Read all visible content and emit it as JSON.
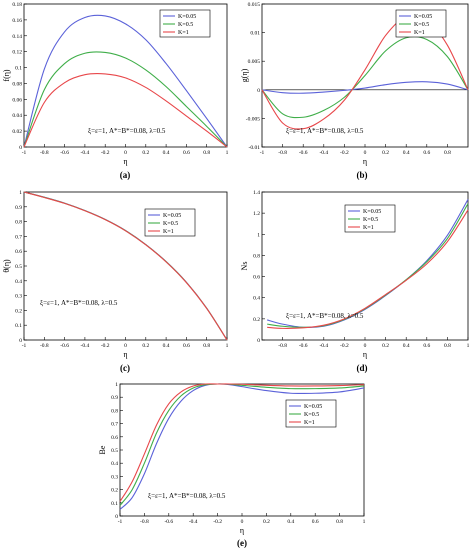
{
  "colors": {
    "blue": "#5b62d9",
    "green": "#3fae49",
    "red": "#e8474a"
  },
  "chart_data": [
    {
      "panel": "(a)",
      "type": "line",
      "xlabel": "η",
      "ylabel": "f(η)",
      "xlim": [
        -1,
        1
      ],
      "ylim": [
        0,
        0.18
      ],
      "xticks": [
        "-1",
        "-0.8",
        "-0.6",
        "-0.4",
        "-0.2",
        "0",
        "0.2",
        "0.4",
        "0.6",
        "0.8",
        "1"
      ],
      "yticks": [
        "0",
        "0.02",
        "0.04",
        "0.06",
        "0.08",
        "0.1",
        "0.12",
        "0.14",
        "0.16",
        "0.18"
      ],
      "ytick_values": [
        0,
        0.02,
        0.04,
        0.06,
        0.08,
        0.1,
        0.12,
        0.14,
        0.16,
        0.18
      ],
      "annotation": "ξ=ε=1, A*=B*=0.08, λ=0.5",
      "legend": "top-right",
      "x": [
        -1,
        -0.8,
        -0.6,
        -0.4,
        -0.2,
        0,
        0.2,
        0.4,
        0.6,
        0.8,
        1
      ],
      "series": [
        {
          "name": "K=0.05",
          "color": "blue",
          "values": [
            0,
            0.098,
            0.145,
            0.163,
            0.165,
            0.155,
            0.135,
            0.105,
            0.071,
            0.036,
            0
          ]
        },
        {
          "name": "K=0.5",
          "color": "green",
          "values": [
            0,
            0.072,
            0.105,
            0.118,
            0.119,
            0.112,
            0.097,
            0.076,
            0.051,
            0.026,
            0
          ]
        },
        {
          "name": "K=1",
          "color": "red",
          "values": [
            0,
            0.056,
            0.081,
            0.091,
            0.092,
            0.087,
            0.075,
            0.058,
            0.039,
            0.02,
            0
          ]
        }
      ]
    },
    {
      "panel": "(b)",
      "type": "line",
      "xlabel": "η",
      "ylabel": "g(η)",
      "xlim": [
        -1,
        1
      ],
      "ylim": [
        -0.01,
        0.015
      ],
      "xticks": [
        "-1",
        "-0.8",
        "-0.6",
        "-0.4",
        "-0.2",
        "0",
        "0.2",
        "0.4",
        "0.6",
        "0.8"
      ],
      "yticks": [
        "-0.01",
        "-0.005",
        "0",
        "0.005",
        "0.01",
        "0.015"
      ],
      "ytick_values": [
        -0.01,
        -0.005,
        0,
        0.005,
        0.01,
        0.015
      ],
      "annotation": "ξ=ε=1, A*=B*=0.08, λ=0.5",
      "legend": "top-right",
      "x": [
        -1,
        -0.8,
        -0.6,
        -0.4,
        -0.2,
        0,
        0.2,
        0.4,
        0.6,
        0.8,
        1
      ],
      "series": [
        {
          "name": "K=0.05",
          "color": "blue",
          "values": [
            0,
            -0.0005,
            -0.0006,
            -0.0004,
            -0.0001,
            0.0003,
            0.0009,
            0.0013,
            0.0014,
            0.001,
            0
          ]
        },
        {
          "name": "K=0.5",
          "color": "green",
          "values": [
            0,
            -0.0042,
            -0.0048,
            -0.0036,
            -0.0013,
            0.0025,
            0.0068,
            0.0091,
            0.0088,
            0.0058,
            0
          ]
        },
        {
          "name": "K=1",
          "color": "red",
          "values": [
            0,
            -0.0058,
            -0.0068,
            -0.0051,
            -0.0018,
            0.0035,
            0.0095,
            0.0128,
            0.0122,
            0.0078,
            0
          ]
        }
      ]
    },
    {
      "panel": "(c)",
      "type": "line",
      "xlabel": "η",
      "ylabel": "θ(η)",
      "xlim": [
        -1,
        1
      ],
      "ylim": [
        0,
        1
      ],
      "xticks": [
        "-1",
        "-0.8",
        "-0.6",
        "-0.4",
        "-0.2",
        "0",
        "0.2",
        "0.4",
        "0.6",
        "0.8",
        "1"
      ],
      "yticks": [
        "0",
        "0.1",
        "0.2",
        "0.3",
        "0.4",
        "0.5",
        "0.6",
        "0.7",
        "0.8",
        "0.9",
        "1"
      ],
      "ytick_values": [
        0,
        0.1,
        0.2,
        0.3,
        0.4,
        0.5,
        0.6,
        0.7,
        0.8,
        0.9,
        1
      ],
      "annotation": "ξ=ε=1, A*=B*=0.08, λ=0.5",
      "legend": "top-right",
      "x": [
        -1,
        -0.8,
        -0.6,
        -0.4,
        -0.2,
        0,
        0.2,
        0.4,
        0.6,
        0.8,
        1
      ],
      "series": [
        {
          "name": "K=0.05",
          "color": "blue",
          "values": [
            1,
            0.965,
            0.925,
            0.875,
            0.815,
            0.74,
            0.645,
            0.53,
            0.39,
            0.215,
            0
          ]
        },
        {
          "name": "K=0.5",
          "color": "green",
          "values": [
            1,
            0.964,
            0.924,
            0.874,
            0.814,
            0.739,
            0.644,
            0.529,
            0.389,
            0.214,
            0
          ]
        },
        {
          "name": "K=1",
          "color": "red",
          "values": [
            1,
            0.963,
            0.923,
            0.873,
            0.813,
            0.738,
            0.643,
            0.528,
            0.388,
            0.213,
            0
          ]
        }
      ]
    },
    {
      "panel": "(d)",
      "type": "line",
      "xlabel": "η",
      "ylabel": "Ns",
      "xlim": [
        -1,
        1
      ],
      "ylim": [
        0,
        1.4
      ],
      "xticks": [
        "-0.8",
        "-0.6",
        "-0.4",
        "-0.2",
        "0",
        "0.2",
        "0.4",
        "0.6",
        "0.8",
        "1"
      ],
      "yticks": [
        "0",
        "0.2",
        "0.4",
        "0.6",
        "0.8",
        "1",
        "1.2",
        "1.4"
      ],
      "ytick_values": [
        0,
        0.2,
        0.4,
        0.6,
        0.8,
        1,
        1.2,
        1.4
      ],
      "annotation": "ξ=ε=1, A*=B*=0.08, λ=0.5",
      "legend": "top-center",
      "x": [
        -0.95,
        -0.8,
        -0.6,
        -0.4,
        -0.2,
        0,
        0.2,
        0.4,
        0.6,
        0.8,
        1
      ],
      "series": [
        {
          "name": "K=0.05",
          "color": "blue",
          "values": [
            0.19,
            0.15,
            0.12,
            0.13,
            0.19,
            0.29,
            0.42,
            0.57,
            0.75,
            0.99,
            1.33
          ]
        },
        {
          "name": "K=0.5",
          "color": "green",
          "values": [
            0.15,
            0.13,
            0.12,
            0.135,
            0.195,
            0.295,
            0.425,
            0.57,
            0.74,
            0.96,
            1.29
          ]
        },
        {
          "name": "K=1",
          "color": "red",
          "values": [
            0.12,
            0.11,
            0.115,
            0.14,
            0.2,
            0.3,
            0.43,
            0.565,
            0.72,
            0.93,
            1.23
          ]
        }
      ]
    },
    {
      "panel": "(e)",
      "type": "line",
      "xlabel": "η",
      "ylabel": "Be",
      "xlim": [
        -1,
        1
      ],
      "ylim": [
        0,
        1
      ],
      "xticks": [
        "-1",
        "-0.8",
        "-0.6",
        "-0.4",
        "-0.2",
        "0",
        "0.2",
        "0.4",
        "0.6",
        "0.8",
        "1"
      ],
      "yticks": [
        "0",
        "0.1",
        "0.2",
        "0.3",
        "0.4",
        "0.5",
        "0.6",
        "0.7",
        "0.8",
        "0.9",
        "1"
      ],
      "ytick_values": [
        0,
        0.1,
        0.2,
        0.3,
        0.4,
        0.5,
        0.6,
        0.7,
        0.8,
        0.9,
        1
      ],
      "annotation": "ξ=ε=1, A*=B*=0.08, λ=0.5",
      "legend": "top-right",
      "x": [
        -1,
        -0.9,
        -0.8,
        -0.7,
        -0.6,
        -0.5,
        -0.4,
        -0.3,
        -0.2,
        -0.1,
        0,
        0.2,
        0.4,
        0.6,
        0.8,
        1
      ],
      "series": [
        {
          "name": "K=0.05",
          "color": "blue",
          "values": [
            0.05,
            0.14,
            0.32,
            0.55,
            0.74,
            0.87,
            0.95,
            0.99,
            1,
            0.995,
            0.98,
            0.95,
            0.93,
            0.93,
            0.94,
            0.97
          ]
        },
        {
          "name": "K=0.5",
          "color": "green",
          "values": [
            0.08,
            0.2,
            0.4,
            0.63,
            0.8,
            0.91,
            0.97,
            0.995,
            1,
            0.998,
            0.99,
            0.975,
            0.965,
            0.965,
            0.97,
            0.985
          ]
        },
        {
          "name": "K=1",
          "color": "red",
          "values": [
            0.11,
            0.26,
            0.47,
            0.69,
            0.85,
            0.94,
            0.985,
            1,
            1,
            1,
            0.998,
            0.99,
            0.985,
            0.985,
            0.988,
            0.995
          ]
        }
      ]
    }
  ]
}
